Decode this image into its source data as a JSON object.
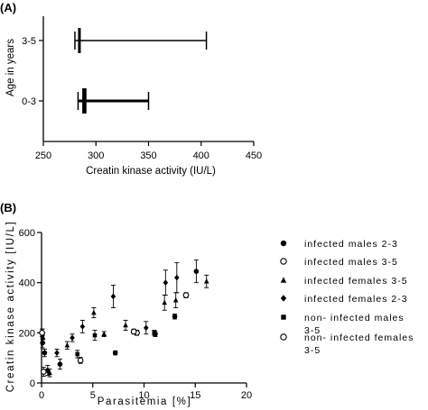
{
  "panels": {
    "a_label": "(A)",
    "b_label": "(B)"
  },
  "chart_data": [
    {
      "type": "box",
      "panel": "(A)",
      "title": "",
      "xlabel": "Creatin kinase activity (IU/L)",
      "ylabel": "Age in years",
      "xlim": [
        250,
        450
      ],
      "xticks": [
        "250",
        "300",
        "350",
        "400",
        "450"
      ],
      "categories": [
        "3-5",
        "0-3"
      ],
      "boxes": [
        {
          "category": "3-5",
          "min": 280,
          "q1": 283,
          "median": 284,
          "q3": 285,
          "max": 405
        },
        {
          "category": "0-3",
          "min": 283,
          "q1": 287,
          "median": 289,
          "q3": 291,
          "max": 350
        }
      ],
      "grid": false
    },
    {
      "type": "scatter",
      "panel": "(B)",
      "title": "",
      "xlabel": "Parasitemia [%]",
      "ylabel": "Creatin kinase activity [IU/L]",
      "xlim": [
        0,
        20
      ],
      "ylim": [
        0,
        600
      ],
      "xticks": [
        "0",
        "5",
        "10",
        "15",
        "20"
      ],
      "yticks": [
        "0",
        "200",
        "400",
        "600"
      ],
      "legend_position": "right",
      "grid": false,
      "series": [
        {
          "name": "infected males 2-3",
          "marker": "filled-circle",
          "points": [
            {
              "x": 0.1,
              "y": 160,
              "err": 20
            },
            {
              "x": 0.3,
              "y": 120,
              "err": 15
            },
            {
              "x": 0.6,
              "y": 50,
              "err": 20
            },
            {
              "x": 1.8,
              "y": 75,
              "err": 20
            },
            {
              "x": 7.2,
              "y": 120,
              "err": 8
            },
            {
              "x": 11.1,
              "y": 195,
              "err": 10
            },
            {
              "x": 13.0,
              "y": 265,
              "err": 10
            },
            {
              "x": 15.1,
              "y": 445,
              "err": 45
            }
          ]
        },
        {
          "name": "infected males 3-5",
          "marker": "open-circle",
          "points": [
            {
              "x": 0.2,
              "y": 45,
              "err": 18
            },
            {
              "x": 3.8,
              "y": 90,
              "err": 12
            },
            {
              "x": 9.3,
              "y": 200,
              "err": 10
            },
            {
              "x": 14.1,
              "y": 350,
              "err": 10
            }
          ]
        },
        {
          "name": "infected females 3-5",
          "marker": "filled-triangle",
          "points": [
            {
              "x": 0.15,
              "y": 180,
              "err": 20
            },
            {
              "x": 0.8,
              "y": 40,
              "err": 15
            },
            {
              "x": 2.5,
              "y": 150,
              "err": 15
            },
            {
              "x": 5.1,
              "y": 280,
              "err": 20
            },
            {
              "x": 6.1,
              "y": 195,
              "err": 10
            },
            {
              "x": 8.2,
              "y": 230,
              "err": 20
            },
            {
              "x": 12.0,
              "y": 320,
              "err": 30
            },
            {
              "x": 13.1,
              "y": 330,
              "err": 30
            },
            {
              "x": 16.1,
              "y": 405,
              "err": 25
            }
          ]
        },
        {
          "name": "infected females 2-3",
          "marker": "filled-diamond",
          "points": [
            {
              "x": 1.5,
              "y": 120,
              "err": 15
            },
            {
              "x": 3.0,
              "y": 180,
              "err": 15
            },
            {
              "x": 4.0,
              "y": 225,
              "err": 25
            },
            {
              "x": 7.0,
              "y": 345,
              "err": 45
            },
            {
              "x": 10.2,
              "y": 220,
              "err": 25
            },
            {
              "x": 12.1,
              "y": 400,
              "err": 50
            },
            {
              "x": 13.2,
              "y": 420,
              "err": 60
            }
          ]
        },
        {
          "name": "non- infected males 3-5",
          "marker": "filled-square",
          "points": [
            {
              "x": 0.1,
              "y": 195,
              "err": 20
            },
            {
              "x": 3.5,
              "y": 115,
              "err": 15
            },
            {
              "x": 5.2,
              "y": 190,
              "err": 20
            },
            {
              "x": 11.0,
              "y": 200,
              "err": 10
            }
          ]
        },
        {
          "name": "non- infected females 3-5",
          "marker": "open-circle",
          "points": [
            {
              "x": 0.05,
              "y": 200,
              "err": 15
            },
            {
              "x": 9.0,
              "y": 205,
              "err": 10
            }
          ]
        }
      ]
    }
  ]
}
